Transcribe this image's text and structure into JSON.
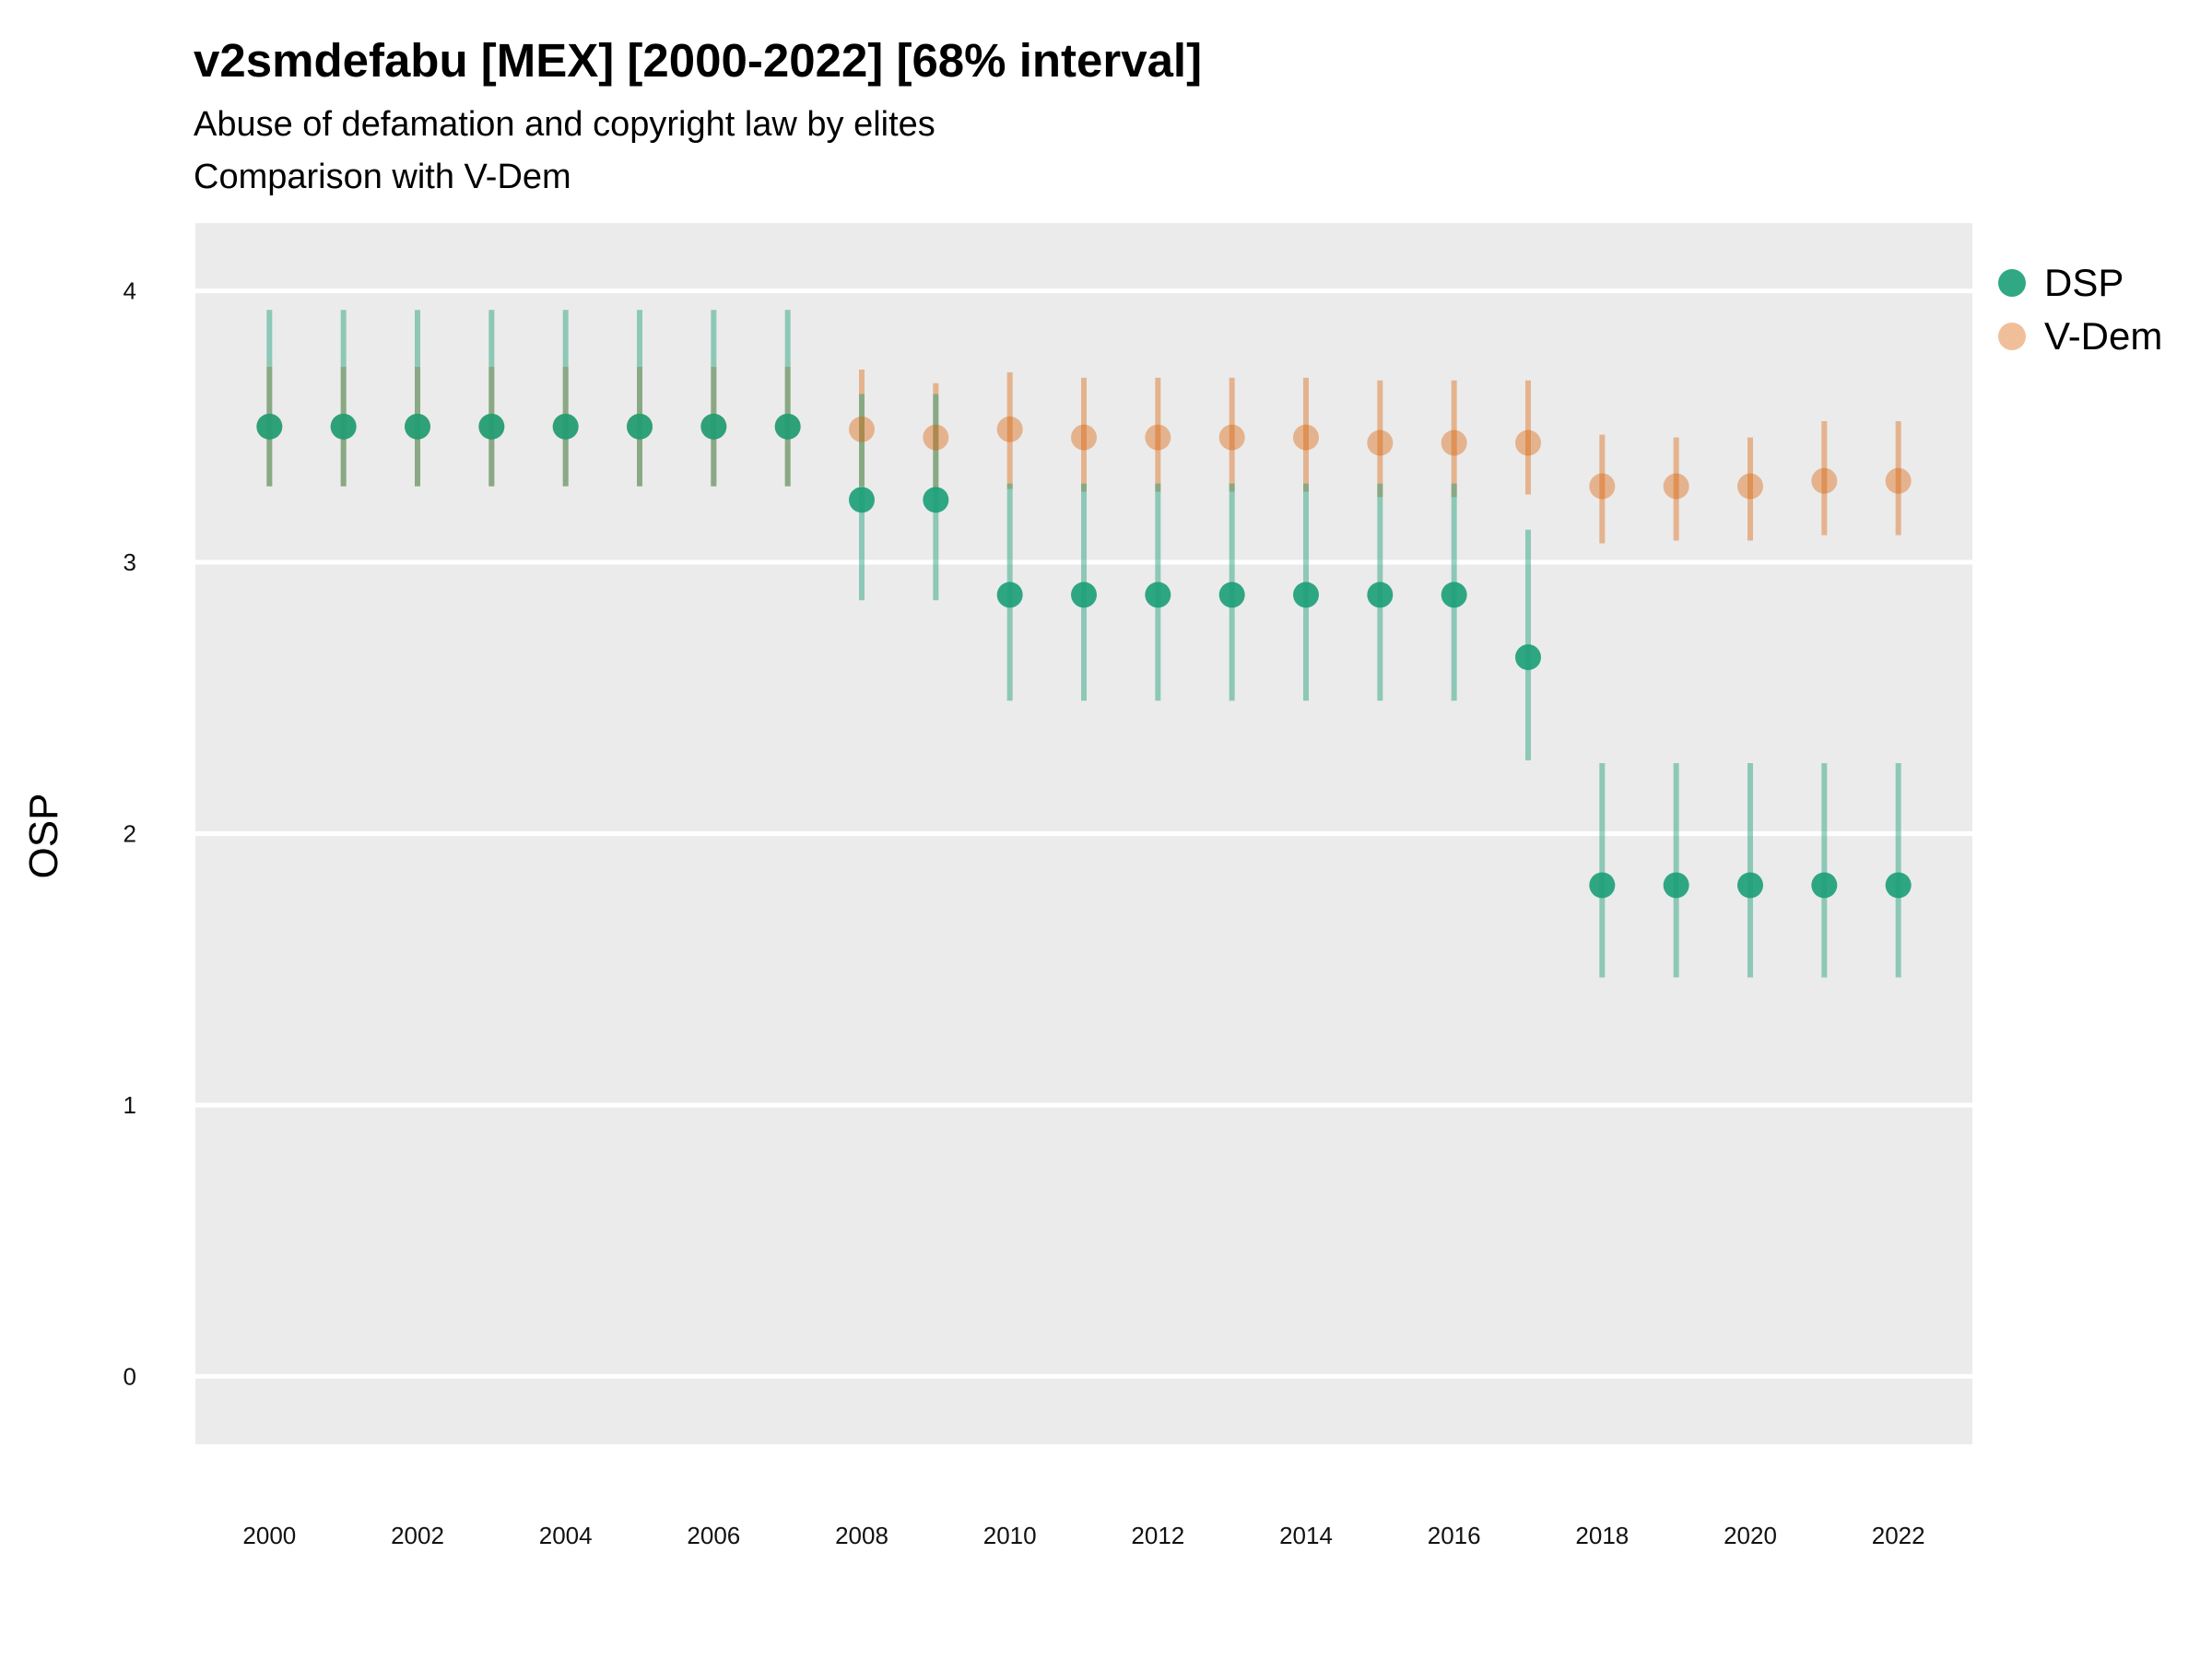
{
  "chart_data": {
    "type": "scatter",
    "title": "v2smdefabu [MEX] [2000-2022] [68% interval]",
    "subtitles": [
      "Abuse of defamation and copyright law by elites",
      "Comparison with V-Dem"
    ],
    "xlabel": "",
    "ylabel": "OSP",
    "xlim": [
      1999,
      2023
    ],
    "ylim": [
      -0.25,
      4.25
    ],
    "x_ticks": [
      2000,
      2002,
      2004,
      2006,
      2008,
      2010,
      2012,
      2014,
      2016,
      2018,
      2020,
      2022
    ],
    "y_ticks": [
      0,
      1,
      2,
      3,
      4
    ],
    "grid": true,
    "legend_position": "right",
    "x": [
      2000,
      2001,
      2002,
      2003,
      2004,
      2005,
      2006,
      2007,
      2008,
      2009,
      2010,
      2011,
      2012,
      2013,
      2014,
      2015,
      2016,
      2017,
      2018,
      2019,
      2020,
      2021,
      2022
    ],
    "series": [
      {
        "name": "DSP",
        "color": "#1b9e77",
        "values": [
          3.5,
          3.5,
          3.5,
          3.5,
          3.5,
          3.5,
          3.5,
          3.5,
          3.23,
          3.23,
          2.88,
          2.88,
          2.88,
          2.88,
          2.88,
          2.88,
          2.88,
          2.65,
          1.81,
          1.81,
          1.81,
          1.81,
          1.81
        ],
        "lower": [
          3.28,
          3.28,
          3.28,
          3.28,
          3.28,
          3.28,
          3.28,
          3.28,
          2.86,
          2.86,
          2.49,
          2.49,
          2.49,
          2.49,
          2.49,
          2.49,
          2.49,
          2.27,
          1.47,
          1.47,
          1.47,
          1.47,
          1.47
        ],
        "upper": [
          3.93,
          3.93,
          3.93,
          3.93,
          3.93,
          3.93,
          3.93,
          3.93,
          3.62,
          3.62,
          3.29,
          3.29,
          3.29,
          3.29,
          3.29,
          3.29,
          3.29,
          3.12,
          2.26,
          2.26,
          2.26,
          2.26,
          2.26
        ]
      },
      {
        "name": "V-Dem",
        "color": "#d95f02",
        "values": [
          3.5,
          3.5,
          3.5,
          3.5,
          3.5,
          3.5,
          3.5,
          3.5,
          3.49,
          3.46,
          3.49,
          3.46,
          3.46,
          3.46,
          3.46,
          3.44,
          3.44,
          3.44,
          3.28,
          3.28,
          3.28,
          3.3,
          3.3
        ],
        "lower": [
          3.28,
          3.28,
          3.28,
          3.28,
          3.28,
          3.28,
          3.28,
          3.28,
          3.28,
          3.26,
          3.27,
          3.26,
          3.26,
          3.26,
          3.26,
          3.24,
          3.24,
          3.25,
          3.07,
          3.08,
          3.08,
          3.1,
          3.1
        ],
        "upper": [
          3.72,
          3.72,
          3.72,
          3.72,
          3.72,
          3.72,
          3.72,
          3.72,
          3.71,
          3.66,
          3.7,
          3.68,
          3.68,
          3.68,
          3.68,
          3.67,
          3.67,
          3.67,
          3.47,
          3.46,
          3.46,
          3.52,
          3.52
        ]
      }
    ]
  }
}
